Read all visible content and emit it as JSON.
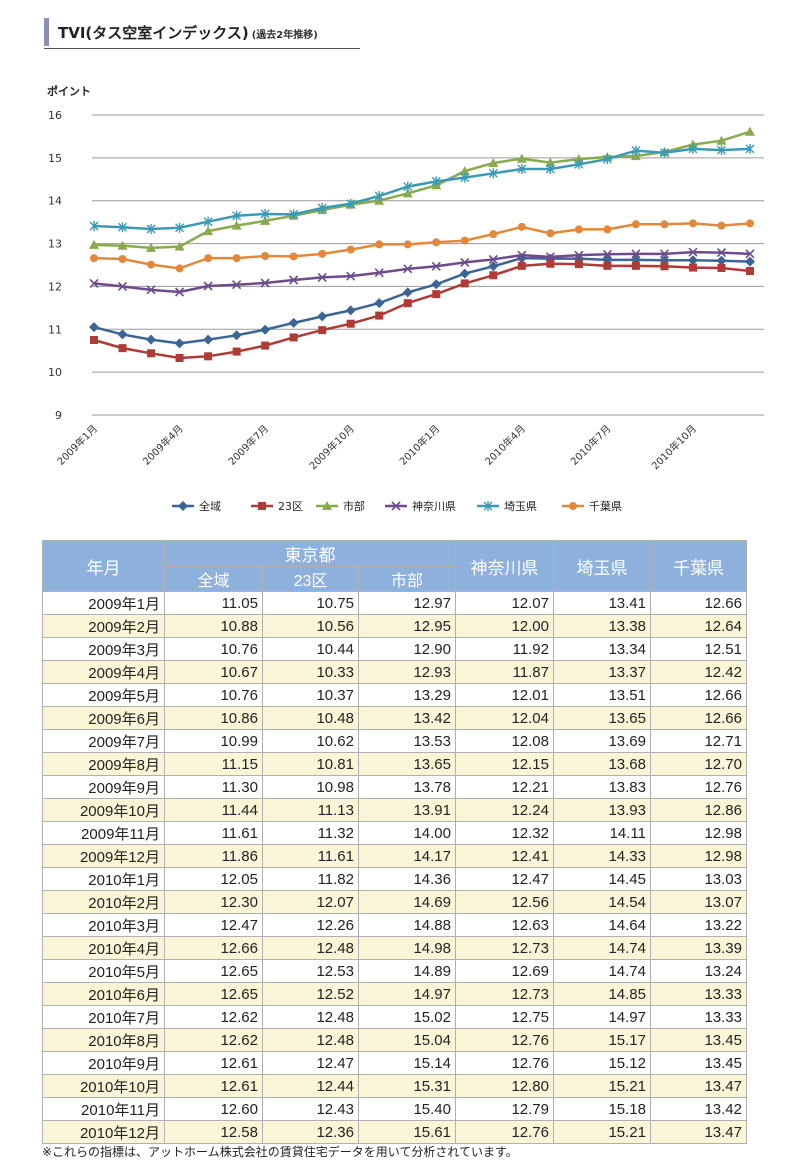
{
  "header": {
    "title": "TVI(タス空室インデックス)",
    "subtitle": "(過去2年推移)"
  },
  "chart_data": {
    "type": "line",
    "ylabel": "ポイント",
    "ylim": [
      9,
      16
    ],
    "yticks": [
      9,
      10,
      11,
      12,
      13,
      14,
      15,
      16
    ],
    "grid": true,
    "legend_position": "bottom",
    "xtick_labels": [
      "2009年1月",
      "2009年4月",
      "2009年7月",
      "2009年10月",
      "2010年1月",
      "2010年4月",
      "2010年7月",
      "2010年10月"
    ],
    "x": [
      "2009年1月",
      "2009年2月",
      "2009年3月",
      "2009年4月",
      "2009年5月",
      "2009年6月",
      "2009年7月",
      "2009年8月",
      "2009年9月",
      "2009年10月",
      "2009年11月",
      "2009年12月",
      "2010年1月",
      "2010年2月",
      "2010年3月",
      "2010年4月",
      "2010年5月",
      "2010年6月",
      "2010年7月",
      "2010年8月",
      "2010年9月",
      "2010年10月",
      "2010年11月",
      "2010年12月"
    ],
    "series": [
      {
        "name": "全域",
        "color": "#3c6494",
        "marker": "diamond",
        "values": [
          11.05,
          10.88,
          10.76,
          10.67,
          10.76,
          10.86,
          10.99,
          11.15,
          11.3,
          11.44,
          11.61,
          11.86,
          12.05,
          12.3,
          12.47,
          12.66,
          12.65,
          12.65,
          12.62,
          12.62,
          12.61,
          12.61,
          12.6,
          12.58
        ]
      },
      {
        "name": "23区",
        "color": "#b03a36",
        "marker": "square",
        "values": [
          10.75,
          10.56,
          10.44,
          10.33,
          10.37,
          10.48,
          10.62,
          10.81,
          10.98,
          11.13,
          11.32,
          11.61,
          11.82,
          12.07,
          12.26,
          12.48,
          12.53,
          12.52,
          12.48,
          12.48,
          12.47,
          12.44,
          12.43,
          12.36
        ]
      },
      {
        "name": "市部",
        "color": "#8aaa50",
        "marker": "triangle",
        "values": [
          12.97,
          12.95,
          12.9,
          12.93,
          13.29,
          13.42,
          13.53,
          13.65,
          13.78,
          13.91,
          14.0,
          14.17,
          14.36,
          14.69,
          14.88,
          14.98,
          14.89,
          14.97,
          15.02,
          15.04,
          15.14,
          15.31,
          15.4,
          15.61
        ]
      },
      {
        "name": "神奈川県",
        "color": "#6e4c8c",
        "marker": "x",
        "values": [
          12.07,
          12.0,
          11.92,
          11.87,
          12.01,
          12.04,
          12.08,
          12.15,
          12.21,
          12.24,
          12.32,
          12.41,
          12.47,
          12.56,
          12.63,
          12.73,
          12.69,
          12.73,
          12.75,
          12.76,
          12.76,
          12.8,
          12.79,
          12.76
        ]
      },
      {
        "name": "埼玉県",
        "color": "#3a9ab6",
        "marker": "star",
        "values": [
          13.41,
          13.38,
          13.34,
          13.37,
          13.51,
          13.65,
          13.69,
          13.68,
          13.83,
          13.93,
          14.11,
          14.33,
          14.45,
          14.54,
          14.64,
          14.74,
          14.74,
          14.85,
          14.97,
          15.17,
          15.12,
          15.21,
          15.18,
          15.21
        ]
      },
      {
        "name": "千葉県",
        "color": "#e2883a",
        "marker": "circle",
        "values": [
          12.66,
          12.64,
          12.51,
          12.42,
          12.66,
          12.66,
          12.71,
          12.7,
          12.76,
          12.86,
          12.98,
          12.98,
          13.03,
          13.07,
          13.22,
          13.39,
          13.24,
          13.33,
          13.33,
          13.45,
          13.45,
          13.47,
          13.42,
          13.47
        ]
      }
    ]
  },
  "table": {
    "header_month": "年月",
    "header_tokyo": "東京都",
    "header_kanagawa": "神奈川県",
    "header_saitama": "埼玉県",
    "header_chiba": "千葉県",
    "sub_all": "全域",
    "sub_23": "23区",
    "sub_city": "市部",
    "rows": [
      [
        "2009年1月",
        "11.05",
        "10.75",
        "12.97",
        "12.07",
        "13.41",
        "12.66"
      ],
      [
        "2009年2月",
        "10.88",
        "10.56",
        "12.95",
        "12.00",
        "13.38",
        "12.64"
      ],
      [
        "2009年3月",
        "10.76",
        "10.44",
        "12.90",
        "11.92",
        "13.34",
        "12.51"
      ],
      [
        "2009年4月",
        "10.67",
        "10.33",
        "12.93",
        "11.87",
        "13.37",
        "12.42"
      ],
      [
        "2009年5月",
        "10.76",
        "10.37",
        "13.29",
        "12.01",
        "13.51",
        "12.66"
      ],
      [
        "2009年6月",
        "10.86",
        "10.48",
        "13.42",
        "12.04",
        "13.65",
        "12.66"
      ],
      [
        "2009年7月",
        "10.99",
        "10.62",
        "13.53",
        "12.08",
        "13.69",
        "12.71"
      ],
      [
        "2009年8月",
        "11.15",
        "10.81",
        "13.65",
        "12.15",
        "13.68",
        "12.70"
      ],
      [
        "2009年9月",
        "11.30",
        "10.98",
        "13.78",
        "12.21",
        "13.83",
        "12.76"
      ],
      [
        "2009年10月",
        "11.44",
        "11.13",
        "13.91",
        "12.24",
        "13.93",
        "12.86"
      ],
      [
        "2009年11月",
        "11.61",
        "11.32",
        "14.00",
        "12.32",
        "14.11",
        "12.98"
      ],
      [
        "2009年12月",
        "11.86",
        "11.61",
        "14.17",
        "12.41",
        "14.33",
        "12.98"
      ],
      [
        "2010年1月",
        "12.05",
        "11.82",
        "14.36",
        "12.47",
        "14.45",
        "13.03"
      ],
      [
        "2010年2月",
        "12.30",
        "12.07",
        "14.69",
        "12.56",
        "14.54",
        "13.07"
      ],
      [
        "2010年3月",
        "12.47",
        "12.26",
        "14.88",
        "12.63",
        "14.64",
        "13.22"
      ],
      [
        "2010年4月",
        "12.66",
        "12.48",
        "14.98",
        "12.73",
        "14.74",
        "13.39"
      ],
      [
        "2010年5月",
        "12.65",
        "12.53",
        "14.89",
        "12.69",
        "14.74",
        "13.24"
      ],
      [
        "2010年6月",
        "12.65",
        "12.52",
        "14.97",
        "12.73",
        "14.85",
        "13.33"
      ],
      [
        "2010年7月",
        "12.62",
        "12.48",
        "15.02",
        "12.75",
        "14.97",
        "13.33"
      ],
      [
        "2010年8月",
        "12.62",
        "12.48",
        "15.04",
        "12.76",
        "15.17",
        "13.45"
      ],
      [
        "2010年9月",
        "12.61",
        "12.47",
        "15.14",
        "12.76",
        "15.12",
        "13.45"
      ],
      [
        "2010年10月",
        "12.61",
        "12.44",
        "15.31",
        "12.80",
        "15.21",
        "13.47"
      ],
      [
        "2010年11月",
        "12.60",
        "12.43",
        "15.40",
        "12.79",
        "15.18",
        "13.42"
      ],
      [
        "2010年12月",
        "12.58",
        "12.36",
        "15.61",
        "12.76",
        "15.21",
        "13.47"
      ]
    ]
  },
  "footnote": "※これらの指標は、アットホーム株式会社の賃貸住宅データを用いて分析されています。"
}
